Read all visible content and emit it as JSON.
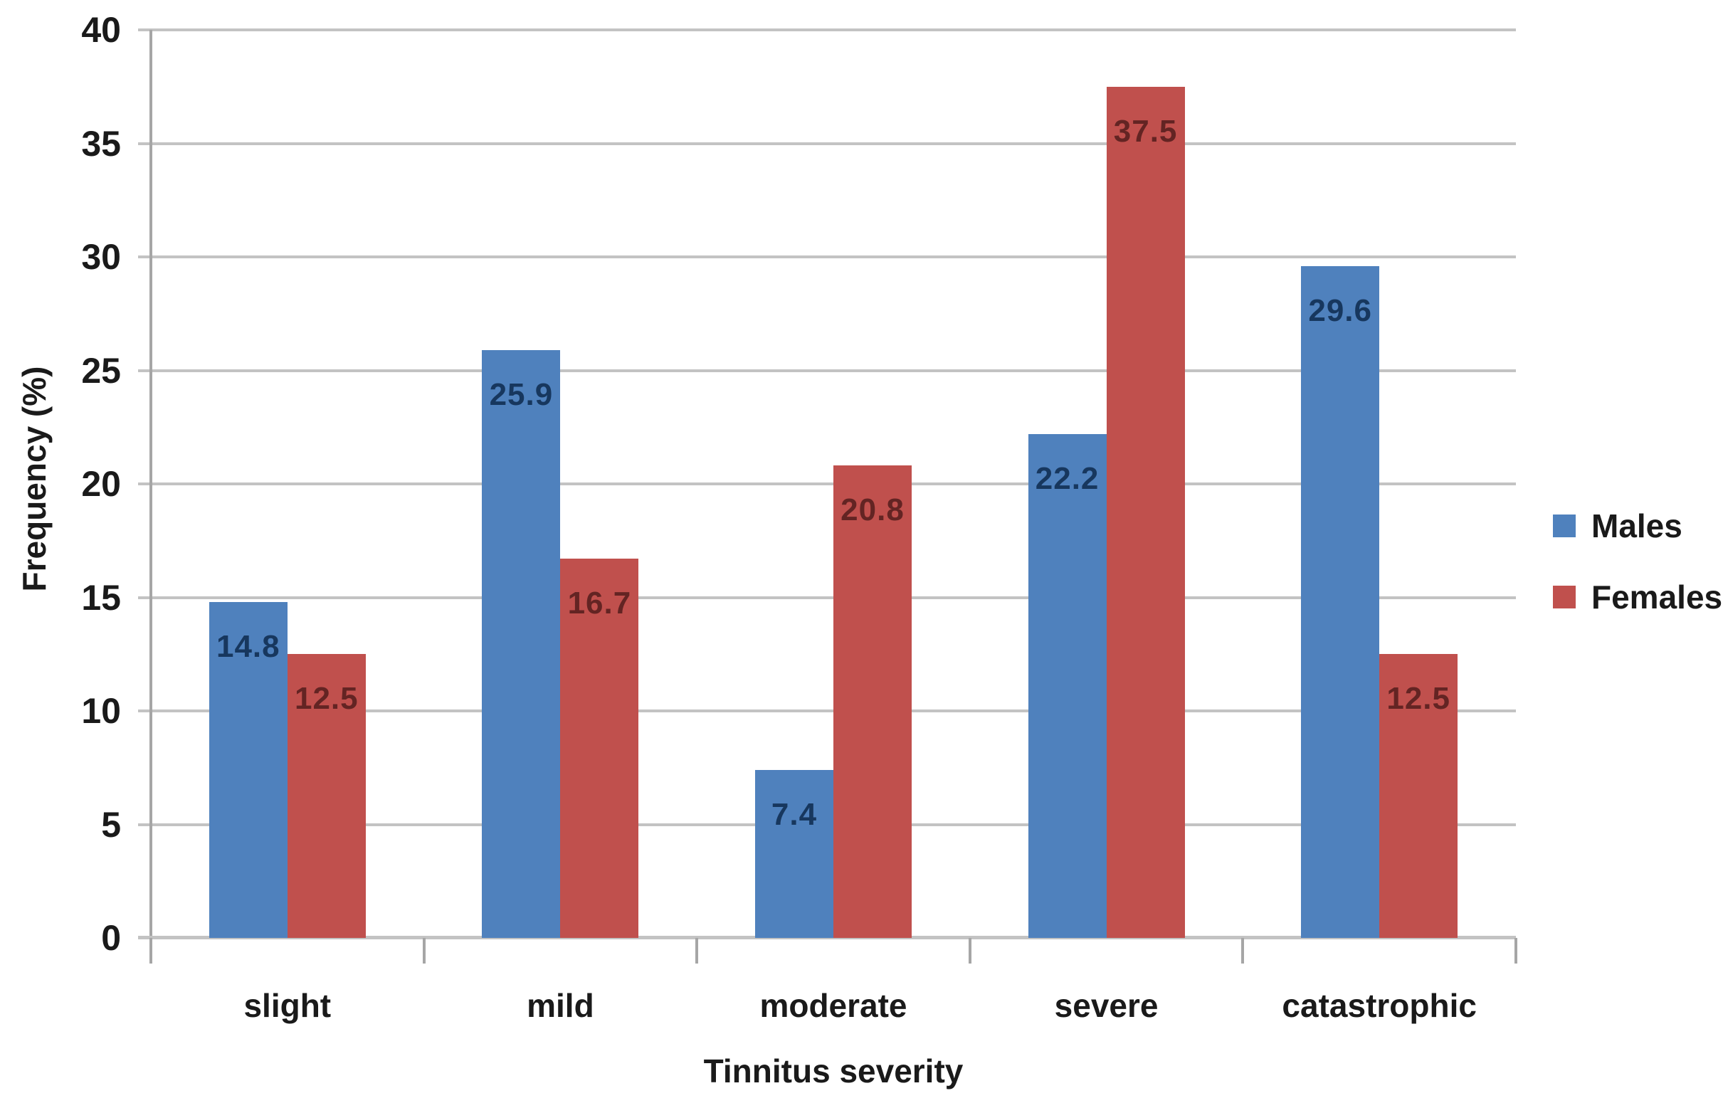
{
  "chart_data": {
    "type": "bar",
    "title": "",
    "categories": [
      "slight",
      "mild",
      "moderate",
      "severe",
      "catastrophic"
    ],
    "series": [
      {
        "name": "Males",
        "color": "#4F81BD",
        "label_color": "#17375E",
        "values": [
          14.8,
          25.9,
          7.4,
          22.2,
          29.6
        ]
      },
      {
        "name": "Females",
        "color": "#C0504D",
        "label_color": "#632423",
        "values": [
          12.5,
          16.7,
          20.8,
          37.5,
          12.5
        ]
      }
    ],
    "xlabel": "Tinnitus severity",
    "ylabel": "Frequency (%)",
    "ylim": [
      0,
      40
    ],
    "yticks": [
      0,
      5,
      10,
      15,
      20,
      25,
      30,
      35,
      40
    ],
    "grid": true,
    "legend_position": "right"
  },
  "styles": {
    "background": "#FFFFFF",
    "gridline_color": "#C3C3C3",
    "axis_color": "#A6A6A6",
    "text_color": "#1A1A1A"
  }
}
